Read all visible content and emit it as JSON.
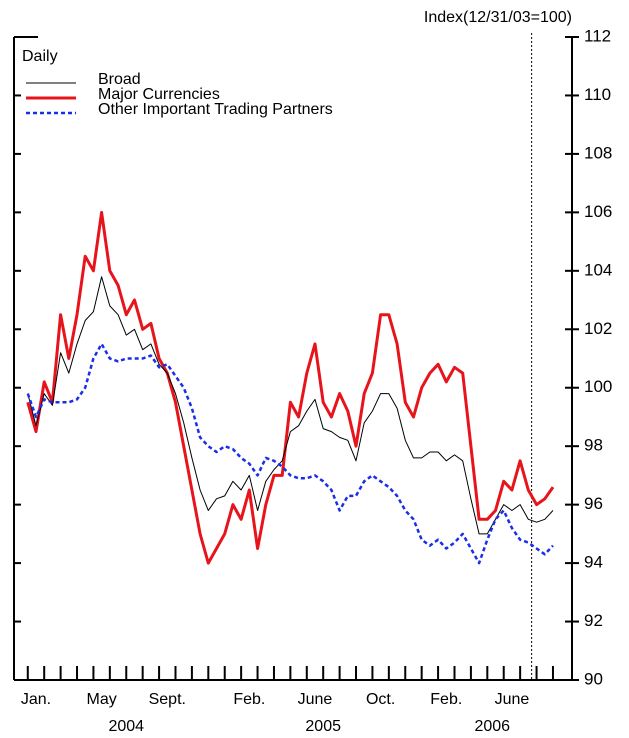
{
  "chart_data": {
    "type": "line",
    "title": "Daily",
    "y_axis_label": "Index(12/31/03=100)",
    "x": [
      0,
      0.5,
      1,
      1.5,
      2,
      2.5,
      3,
      3.5,
      4,
      4.5,
      5,
      5.5,
      6,
      6.5,
      7,
      7.5,
      8,
      8.5,
      9,
      9.5,
      10,
      10.5,
      11,
      11.5,
      12,
      12.5,
      13,
      13.5,
      14,
      14.5,
      15,
      15.5,
      16,
      16.5,
      17,
      17.5,
      18,
      18.5,
      19,
      19.5,
      20,
      20.5,
      21,
      21.5,
      22,
      22.5,
      23,
      23.5,
      24,
      24.5,
      25,
      25.5,
      26,
      26.5,
      27,
      27.5,
      28,
      28.5,
      29,
      29.5,
      30,
      30.5,
      31,
      31.5,
      32
    ],
    "series": [
      {
        "name": "Broad",
        "color": "#000000",
        "width": 1,
        "dash": false,
        "values": [
          99.8,
          98.7,
          99.8,
          99.4,
          101.2,
          100.5,
          101.5,
          102.3,
          102.6,
          103.8,
          102.8,
          102.5,
          101.8,
          102.0,
          101.3,
          101.5,
          100.8,
          100.5,
          99.8,
          98.8,
          97.6,
          96.5,
          95.8,
          96.2,
          96.3,
          96.8,
          96.5,
          97.0,
          95.8,
          96.8,
          97.2,
          97.5,
          98.5,
          98.7,
          99.2,
          99.6,
          98.6,
          98.5,
          98.3,
          98.2,
          97.5,
          98.8,
          99.2,
          99.8,
          99.8,
          99.3,
          98.2,
          97.6,
          97.6,
          97.8,
          97.8,
          97.5,
          97.7,
          97.5,
          96.2,
          95.0,
          95.0,
          95.5,
          96.0,
          95.8,
          96.0,
          95.5,
          95.4,
          95.5,
          95.8
        ]
      },
      {
        "name": "Major Currencies",
        "color": "#e8141c",
        "width": 3,
        "dash": false,
        "values": [
          99.5,
          98.5,
          100.2,
          99.5,
          102.5,
          101.0,
          102.5,
          104.5,
          104.0,
          106.0,
          104.0,
          103.5,
          102.5,
          103.0,
          102.0,
          102.2,
          101.0,
          100.5,
          99.5,
          98.0,
          96.5,
          95.0,
          94.0,
          94.5,
          95.0,
          96.0,
          95.5,
          96.5,
          94.5,
          96.0,
          97.0,
          97.0,
          99.5,
          99.0,
          100.5,
          101.5,
          99.5,
          99.0,
          99.8,
          99.2,
          98.0,
          99.8,
          100.5,
          102.5,
          102.5,
          101.5,
          99.5,
          99.0,
          100.0,
          100.5,
          100.8,
          100.2,
          100.7,
          100.5,
          98.0,
          95.5,
          95.5,
          95.8,
          96.8,
          96.5,
          97.5,
          96.5,
          96.0,
          96.2,
          96.6
        ]
      },
      {
        "name": "Other Important Trading Partners",
        "color": "#1a2ee8",
        "width": 2.5,
        "dash": true,
        "values": [
          99.8,
          99.0,
          99.6,
          99.5,
          99.5,
          99.5,
          99.6,
          100.0,
          101.0,
          101.5,
          101.0,
          100.9,
          101.0,
          101.0,
          101.0,
          101.1,
          100.7,
          100.8,
          100.4,
          100.0,
          99.3,
          98.3,
          98.0,
          97.8,
          98.0,
          97.9,
          97.6,
          97.4,
          97.0,
          97.6,
          97.5,
          97.3,
          97.0,
          96.9,
          96.9,
          97.0,
          96.8,
          96.5,
          95.8,
          96.3,
          96.3,
          96.8,
          97.0,
          96.8,
          96.6,
          96.3,
          95.8,
          95.5,
          94.8,
          94.6,
          94.8,
          94.5,
          94.7,
          95.0,
          94.5,
          94.0,
          94.8,
          95.5,
          95.8,
          95.2,
          94.8,
          94.7,
          94.5,
          94.3,
          94.6
        ]
      }
    ],
    "xlim": [
      -0.84,
      33.16
    ],
    "ylim": [
      90,
      112
    ],
    "yticks": [
      90,
      92,
      94,
      96,
      98,
      100,
      102,
      104,
      106,
      108,
      110,
      112
    ],
    "xticks": [
      {
        "value": 0.5,
        "label": "Jan."
      },
      {
        "value": 4.5,
        "label": "May"
      },
      {
        "value": 8.5,
        "label": "Sept."
      },
      {
        "value": 13.5,
        "label": "Feb."
      },
      {
        "value": 17.5,
        "label": "June"
      },
      {
        "value": 21.5,
        "label": "Oct."
      },
      {
        "value": 25.5,
        "label": "Feb."
      },
      {
        "value": 29.5,
        "label": "June"
      }
    ],
    "xminorticks": [
      0,
      1,
      2,
      3,
      4,
      5,
      6,
      7,
      8,
      9,
      10,
      11,
      12,
      13,
      14,
      15,
      16,
      17,
      18,
      19,
      20,
      21,
      22,
      23,
      24,
      25,
      26,
      27,
      28,
      29,
      30,
      31,
      32
    ],
    "year_labels": [
      {
        "value": 6,
        "label": "2004"
      },
      {
        "value": 18,
        "label": "2005"
      },
      {
        "value": 28.3,
        "label": "2006"
      }
    ],
    "vline": 30.7,
    "legend": "top-left"
  }
}
